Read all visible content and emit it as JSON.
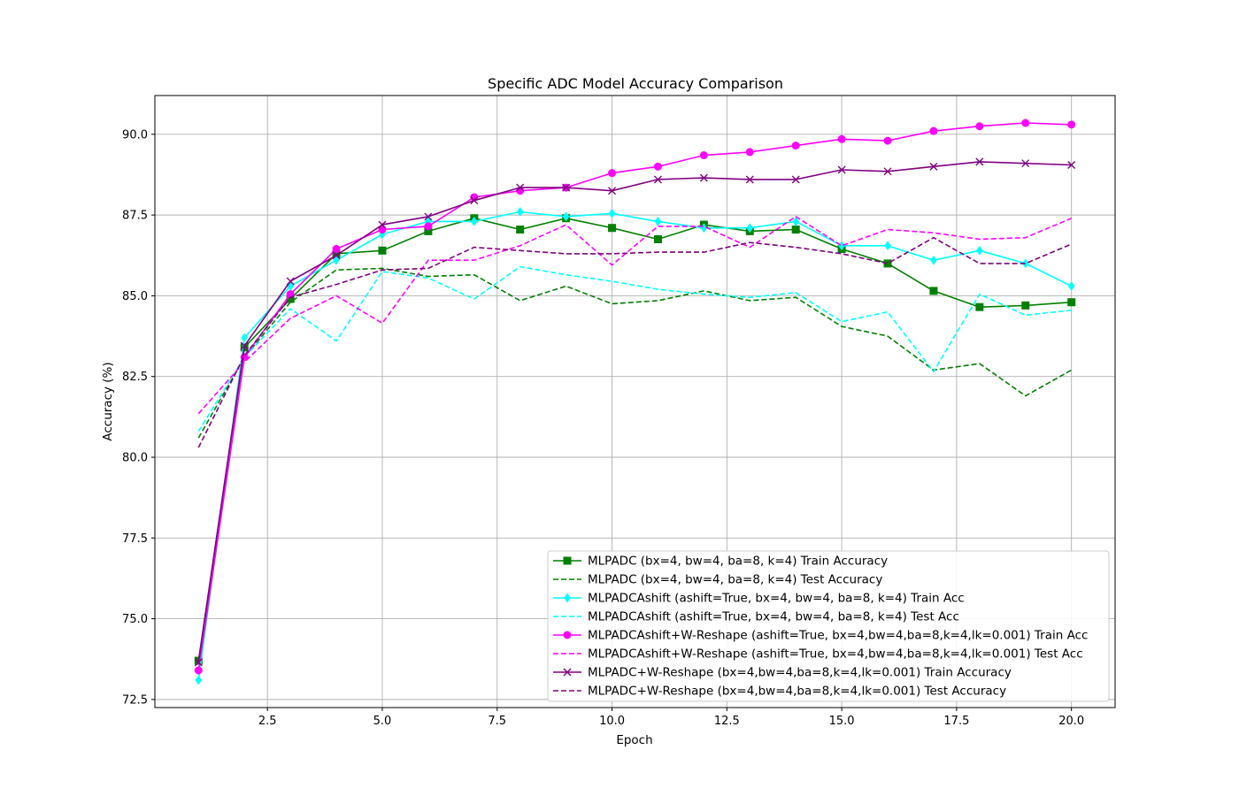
{
  "chart_data": {
    "type": "line",
    "title": "Specific ADC Model Accuracy Comparison",
    "xlabel": "Epoch",
    "ylabel": "Accuracy (%)",
    "xlim": [
      0.05,
      20.95
    ],
    "ylim": [
      72.25,
      91.2
    ],
    "xticks": [
      2.5,
      5.0,
      7.5,
      10.0,
      12.5,
      15.0,
      17.5,
      20.0
    ],
    "xtick_labels": [
      "2.5",
      "5.0",
      "7.5",
      "10.0",
      "12.5",
      "15.0",
      "17.5",
      "20.0"
    ],
    "yticks": [
      72.5,
      75.0,
      77.5,
      80.0,
      82.5,
      85.0,
      87.5,
      90.0
    ],
    "ytick_labels": [
      "72.5",
      "75.0",
      "77.5",
      "80.0",
      "82.5",
      "85.0",
      "87.5",
      "90.0"
    ],
    "grid": true,
    "legend_position": "lower-right",
    "x": [
      1,
      2,
      3,
      4,
      5,
      6,
      7,
      8,
      9,
      10,
      11,
      12,
      13,
      14,
      15,
      16,
      17,
      18,
      19,
      20
    ],
    "series": [
      {
        "name": "MLPADC (bx=4, bw=4, ba=8, k=4) Train Accuracy",
        "color": "#008000",
        "dash": false,
        "marker": "square",
        "values": [
          73.7,
          83.4,
          84.9,
          86.3,
          86.4,
          87.0,
          87.4,
          87.05,
          87.4,
          87.1,
          86.75,
          87.2,
          87.0,
          87.05,
          86.45,
          86.0,
          85.15,
          84.65,
          84.7,
          84.8
        ]
      },
      {
        "name": "MLPADC (bx=4, bw=4, ba=8, k=4) Test Accuracy",
        "color": "#008000",
        "dash": true,
        "marker": "none",
        "values": [
          80.6,
          83.1,
          84.8,
          85.8,
          85.85,
          85.6,
          85.65,
          84.85,
          85.3,
          84.75,
          84.85,
          85.15,
          84.85,
          84.95,
          84.05,
          83.75,
          82.7,
          82.9,
          81.9,
          82.7
        ]
      },
      {
        "name": "MLPADCAshift (ashift=True, bx=4, bw=4, ba=8, k=4) Train Acc",
        "color": "#00ffff",
        "dash": false,
        "marker": "diamond",
        "values": [
          73.1,
          83.7,
          85.3,
          86.1,
          86.9,
          87.3,
          87.3,
          87.6,
          87.45,
          87.55,
          87.3,
          87.1,
          87.1,
          87.3,
          86.55,
          86.55,
          86.1,
          86.4,
          86.0,
          85.3
        ]
      },
      {
        "name": "MLPADCAshift (ashift=True, bx=4, bw=4, ba=8, k=4) Test Acc",
        "color": "#00ffff",
        "dash": true,
        "marker": "none",
        "values": [
          80.8,
          83.1,
          84.6,
          83.6,
          85.75,
          85.55,
          84.9,
          85.9,
          85.65,
          85.45,
          85.2,
          85.05,
          84.95,
          85.1,
          84.2,
          84.5,
          82.65,
          85.05,
          84.4,
          84.55
        ]
      },
      {
        "name": "MLPADCAshift+W-Reshape (ashift=True, bx=4,bw=4,ba=8,k=4,lk=0.001) Train Acc",
        "color": "#ff00ff",
        "dash": false,
        "marker": "circle",
        "values": [
          73.4,
          83.1,
          85.05,
          86.45,
          87.05,
          87.15,
          88.05,
          88.25,
          88.35,
          88.8,
          89.0,
          89.35,
          89.45,
          89.65,
          89.85,
          89.8,
          90.1,
          90.25,
          90.35,
          90.3
        ]
      },
      {
        "name": "MLPADCAshift+W-Reshape (ashift=True, bx=4,bw=4,ba=8,k=4,lk=0.001) Test Acc",
        "color": "#ff00ff",
        "dash": true,
        "marker": "none",
        "values": [
          81.35,
          82.95,
          84.3,
          85.0,
          84.15,
          86.1,
          86.1,
          86.55,
          87.2,
          85.95,
          87.15,
          87.15,
          86.5,
          87.45,
          86.55,
          87.05,
          86.95,
          86.75,
          86.8,
          87.4
        ]
      },
      {
        "name": "MLPADC+W-Reshape (bx=4,bw=4,ba=8,k=4,lk=0.001) Train Accuracy",
        "color": "#800080",
        "dash": false,
        "marker": "x",
        "values": [
          73.65,
          83.45,
          85.45,
          86.25,
          87.2,
          87.45,
          87.95,
          88.35,
          88.35,
          88.25,
          88.6,
          88.65,
          88.6,
          88.6,
          88.9,
          88.85,
          89.0,
          89.15,
          89.1,
          89.05
        ]
      },
      {
        "name": "MLPADC+W-Reshape (bx=4,bw=4,ba=8,k=4,lk=0.001) Test Accuracy",
        "color": "#800080",
        "dash": true,
        "marker": "none",
        "values": [
          80.3,
          83.15,
          84.95,
          85.35,
          85.8,
          85.85,
          86.5,
          86.4,
          86.3,
          86.3,
          86.35,
          86.35,
          86.65,
          86.5,
          86.3,
          86.0,
          86.8,
          86.0,
          86.0,
          86.6
        ]
      }
    ]
  }
}
